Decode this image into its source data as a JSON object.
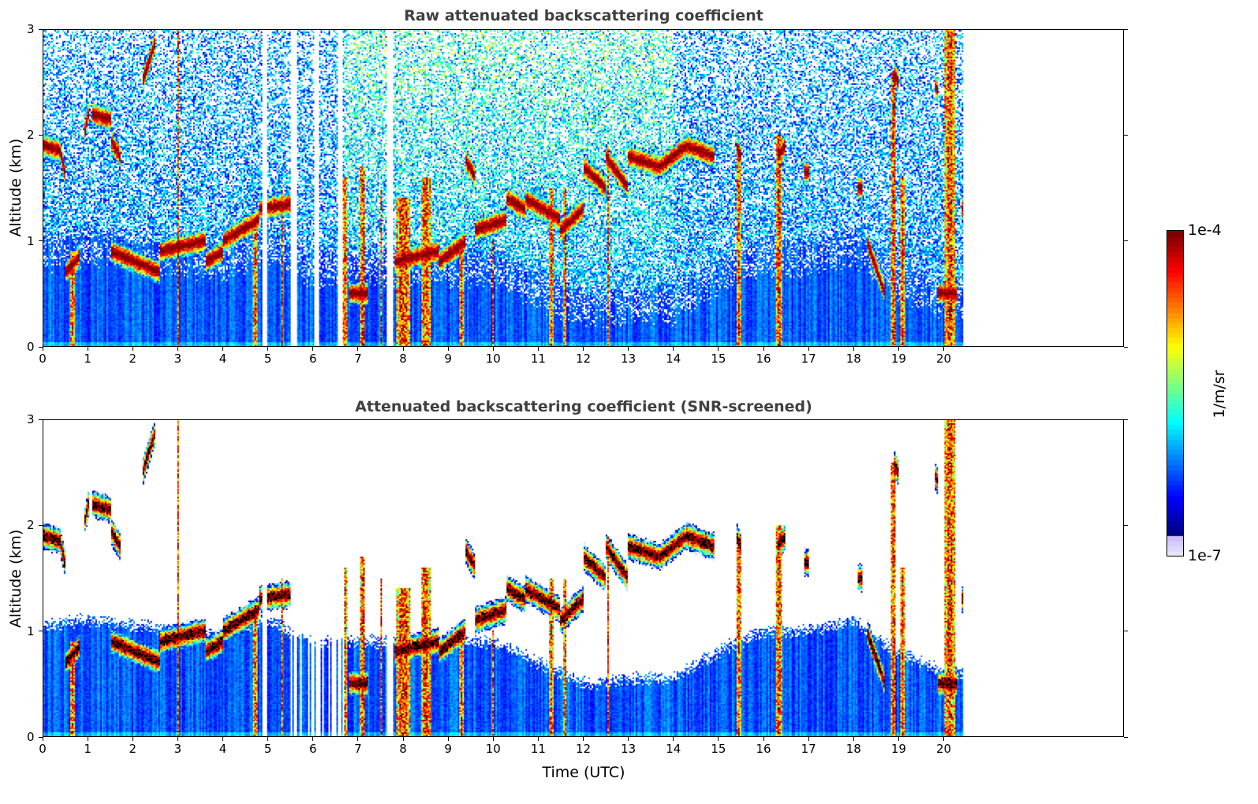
{
  "chart_data": [
    {
      "type": "heatmap",
      "title": "Raw attenuated backscattering coefficient",
      "xlabel": "",
      "ylabel": "Altitude (km)",
      "xlim": [
        0,
        24
      ],
      "ylim": [
        0,
        3
      ],
      "xticks": [
        "0",
        "1",
        "2",
        "3",
        "4",
        "5",
        "6",
        "7",
        "8",
        "9",
        "10",
        "11",
        "12",
        "13",
        "14",
        "15",
        "16",
        "17",
        "18",
        "19",
        "20"
      ],
      "yticks": [
        "0",
        "1",
        "2",
        "3"
      ],
      "screened": false
    },
    {
      "type": "heatmap",
      "title": "Attenuated backscattering coefficient (SNR-screened)",
      "xlabel": "Time (UTC)",
      "ylabel": "Altitude (km)",
      "xlim": [
        0,
        24
      ],
      "ylim": [
        0,
        3
      ],
      "xticks": [
        "0",
        "1",
        "2",
        "3",
        "4",
        "5",
        "6",
        "7",
        "8",
        "9",
        "10",
        "11",
        "12",
        "13",
        "14",
        "15",
        "16",
        "17",
        "18",
        "19",
        "20"
      ],
      "yticks": [
        "0",
        "1",
        "2",
        "3"
      ],
      "screened": true
    }
  ],
  "colorbar": {
    "label": "1/m/sr",
    "max_label": "1e-4",
    "min_label": "1e-7",
    "log10_range": [
      -7,
      -4
    ],
    "colormap": "jet"
  },
  "field": {
    "data_end_time": 20.45,
    "boundary_layer_top_km_hourly": [
      1.05,
      1.1,
      1.05,
      1.0,
      0.95,
      1.1,
      0.9,
      0.9,
      0.9,
      0.9,
      0.9,
      0.7,
      0.5,
      0.55,
      0.55,
      0.8,
      1.0,
      1.0,
      1.1,
      0.8,
      0.6,
      0.6
    ],
    "data_gaps_hours": [
      [
        4.88,
        4.97
      ],
      [
        6.55,
        6.62
      ],
      [
        7.62,
        7.78
      ],
      [
        5.58,
        5.62
      ],
      [
        6.05,
        6.08
      ]
    ],
    "noisy_interval_hours": [
      6.7,
      14.0
    ],
    "cloud_layers": [
      {
        "t": [
          0,
          0.4
        ],
        "z": [
          1.9,
          1.85
        ]
      },
      {
        "t": [
          0.4,
          0.5
        ],
        "z": [
          1.8,
          1.6
        ]
      },
      {
        "t": [
          0.9,
          1.0
        ],
        "z": [
          2.0,
          2.2
        ]
      },
      {
        "t": [
          1.1,
          1.5
        ],
        "z": [
          2.2,
          2.15
        ]
      },
      {
        "t": [
          1.5,
          1.7
        ],
        "z": [
          1.95,
          1.8
        ]
      },
      {
        "t": [
          2.2,
          2.5
        ],
        "z": [
          2.5,
          2.9
        ]
      },
      {
        "t": [
          0.5,
          0.8
        ],
        "z": [
          0.7,
          0.85
        ]
      },
      {
        "t": [
          1.5,
          2.6
        ],
        "z": [
          0.9,
          0.7
        ]
      },
      {
        "t": [
          2.6,
          3.6
        ],
        "z": [
          0.9,
          1.0
        ]
      },
      {
        "t": [
          3.6,
          4.0
        ],
        "z": [
          0.8,
          0.9
        ]
      },
      {
        "t": [
          4.0,
          4.8
        ],
        "z": [
          1.0,
          1.2
        ]
      },
      {
        "t": [
          4.8,
          5.5
        ],
        "z": [
          1.3,
          1.35
        ]
      },
      {
        "t": [
          6.8,
          7.2
        ],
        "z": [
          0.5,
          0.5
        ]
      },
      {
        "t": [
          7.8,
          8.8
        ],
        "z": [
          0.8,
          0.9
        ]
      },
      {
        "t": [
          8.8,
          9.4
        ],
        "z": [
          0.8,
          1.0
        ]
      },
      {
        "t": [
          9.4,
          9.6
        ],
        "z": [
          1.75,
          1.6
        ]
      },
      {
        "t": [
          9.6,
          10.3
        ],
        "z": [
          1.1,
          1.2
        ]
      },
      {
        "t": [
          10.3,
          10.7
        ],
        "z": [
          1.4,
          1.3
        ]
      },
      {
        "t": [
          10.7,
          11.5
        ],
        "z": [
          1.4,
          1.2
        ]
      },
      {
        "t": [
          11.5,
          12.0
        ],
        "z": [
          1.1,
          1.3
        ]
      },
      {
        "t": [
          12.0,
          12.5
        ],
        "z": [
          1.7,
          1.5
        ]
      },
      {
        "t": [
          12.5,
          13.0
        ],
        "z": [
          1.8,
          1.5
        ]
      },
      {
        "t": [
          13.0,
          13.7
        ],
        "z": [
          1.8,
          1.7
        ]
      },
      {
        "t": [
          13.7,
          14.3
        ],
        "z": [
          1.7,
          1.9
        ]
      },
      {
        "t": [
          14.3,
          14.9
        ],
        "z": [
          1.9,
          1.8
        ]
      },
      {
        "t": [
          15.4,
          15.5
        ],
        "z": [
          1.9,
          1.8
        ]
      },
      {
        "t": [
          16.3,
          16.5
        ],
        "z": [
          1.8,
          1.9
        ]
      },
      {
        "t": [
          16.9,
          17.0
        ],
        "z": [
          1.65,
          1.65
        ]
      },
      {
        "t": [
          18.1,
          18.2
        ],
        "z": [
          1.5,
          1.5
        ]
      },
      {
        "t": [
          18.3,
          18.7
        ],
        "z": [
          1.0,
          0.5
        ]
      },
      {
        "t": [
          18.9,
          19.0
        ],
        "z": [
          2.6,
          2.5
        ]
      },
      {
        "t": [
          19.8,
          19.9
        ],
        "z": [
          2.5,
          2.4
        ]
      },
      {
        "t": [
          19.9,
          20.3
        ],
        "z": [
          0.5,
          0.5
        ]
      },
      {
        "t": [
          20.4,
          20.45
        ],
        "z": [
          1.3,
          1.3
        ]
      }
    ],
    "precipitation_streaks": [
      {
        "t": 0.65,
        "w": 0.08,
        "top": 0.9
      },
      {
        "t": 3.0,
        "w": 0.04,
        "top": 3.0
      },
      {
        "t": 4.7,
        "w": 0.1,
        "top": 1.2
      },
      {
        "t": 5.3,
        "w": 0.05,
        "top": 1.5
      },
      {
        "t": 6.7,
        "w": 0.08,
        "top": 1.6
      },
      {
        "t": 7.1,
        "w": 0.1,
        "top": 1.7
      },
      {
        "t": 7.5,
        "w": 0.05,
        "top": 1.5
      },
      {
        "t": 8.0,
        "w": 0.3,
        "top": 1.4
      },
      {
        "t": 8.5,
        "w": 0.2,
        "top": 1.6
      },
      {
        "t": 9.3,
        "w": 0.1,
        "top": 1.0
      },
      {
        "t": 10.0,
        "w": 0.05,
        "top": 1.0
      },
      {
        "t": 11.3,
        "w": 0.1,
        "top": 1.5
      },
      {
        "t": 11.6,
        "w": 0.08,
        "top": 1.5
      },
      {
        "t": 12.55,
        "w": 0.06,
        "top": 1.9
      },
      {
        "t": 15.45,
        "w": 0.1,
        "top": 1.9
      },
      {
        "t": 16.35,
        "w": 0.15,
        "top": 2.0
      },
      {
        "t": 18.9,
        "w": 0.1,
        "top": 2.6
      },
      {
        "t": 19.1,
        "w": 0.12,
        "top": 1.6
      },
      {
        "t": 20.15,
        "w": 0.25,
        "top": 3.0
      }
    ]
  }
}
